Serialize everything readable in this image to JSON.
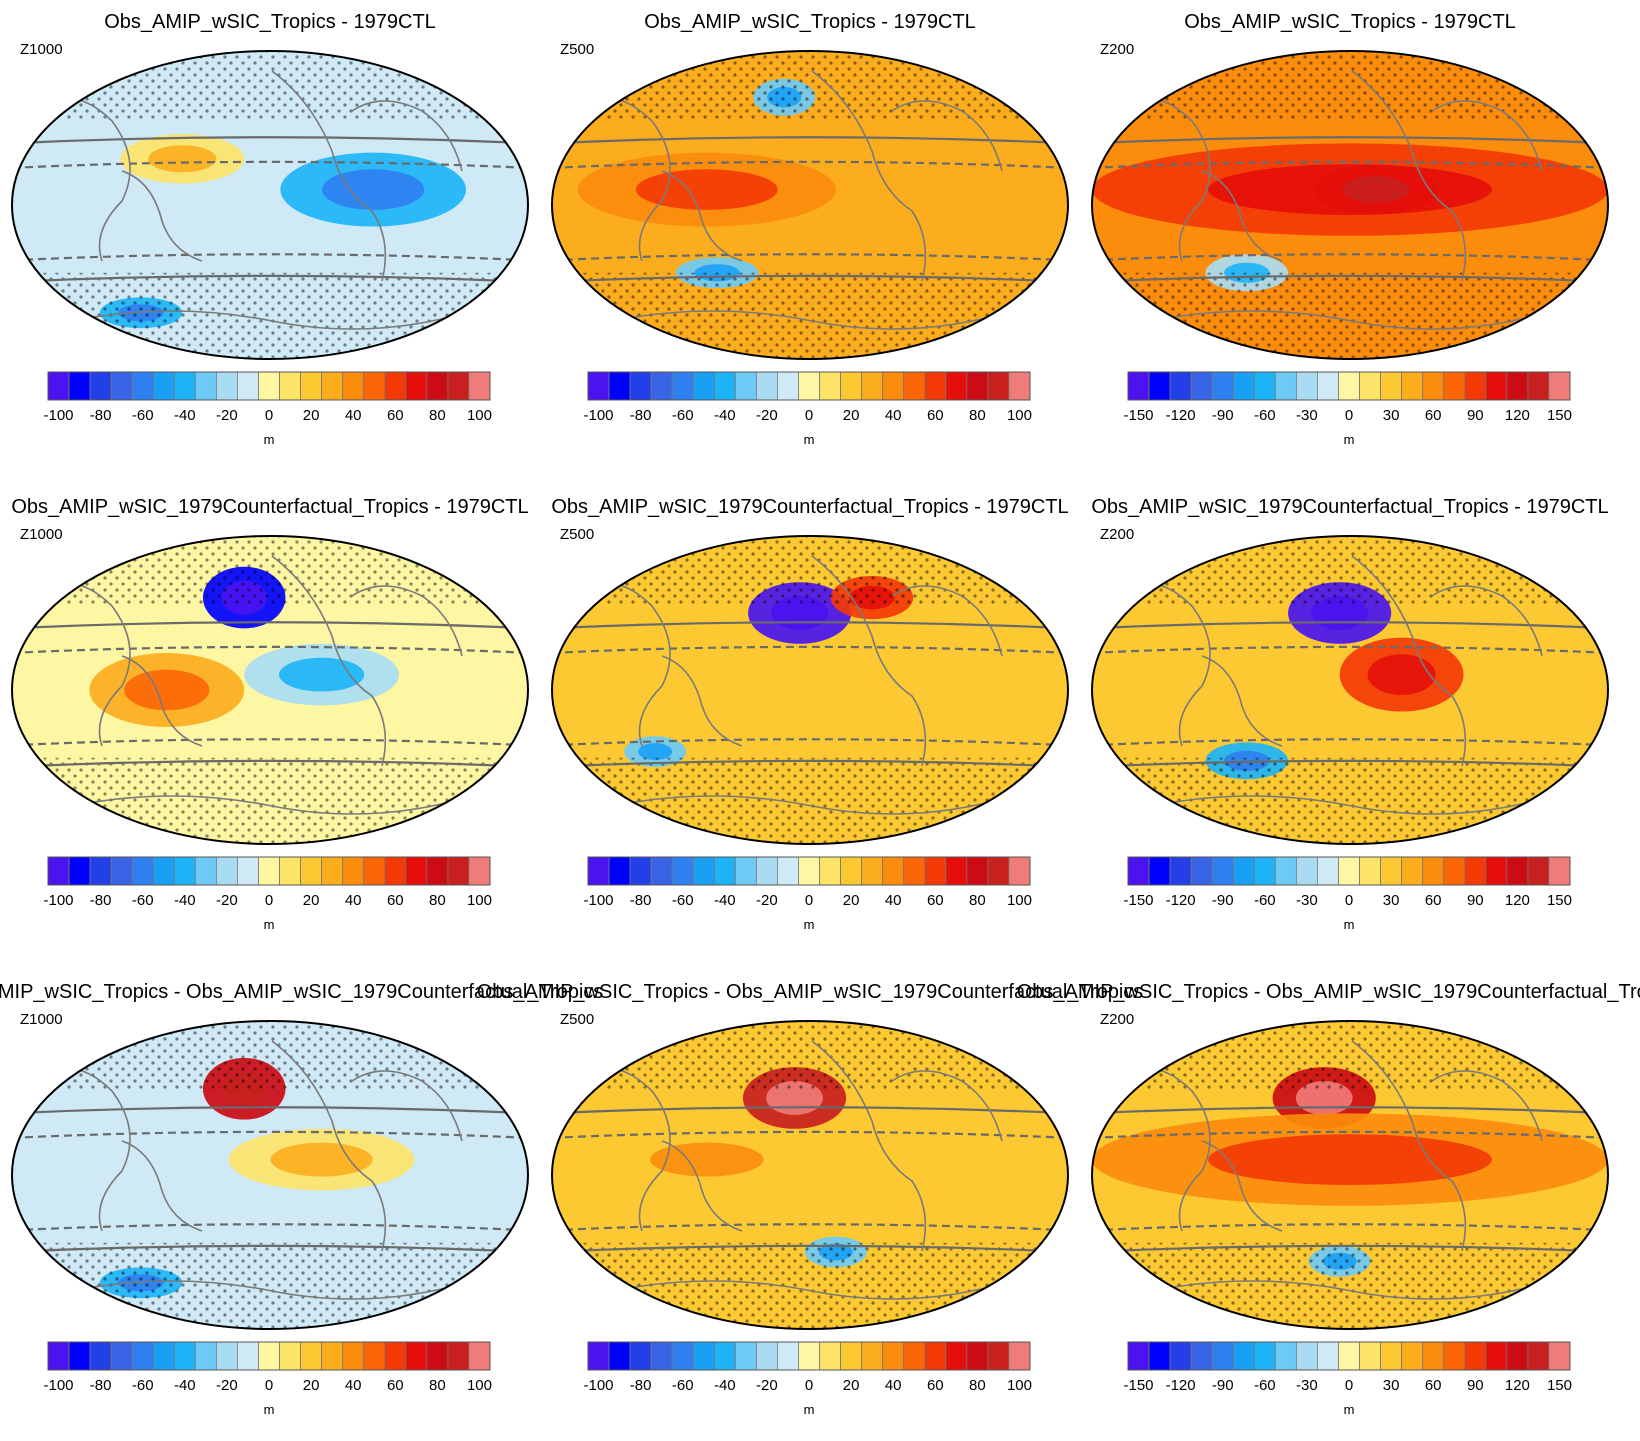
{
  "colors": {
    "scale": [
      "#4a13f0",
      "#0000ff",
      "#2340e8",
      "#3a64e6",
      "#2f80f0",
      "#19a0f5",
      "#1db4f7",
      "#6ecaf5",
      "#a9dcf3",
      "#cfe9f6",
      "#fdf6a3",
      "#fde469",
      "#fcc932",
      "#fcad1e",
      "#fb8c0c",
      "#fb6606",
      "#f33a06",
      "#e50e0a",
      "#cc0b14",
      "#c8201f",
      "#ef7c79"
    ],
    "coast": "#7a7a7a",
    "frame": "#000000"
  },
  "scales": {
    "pm100": {
      "labels": [
        "-100",
        "-80",
        "-60",
        "-40",
        "-20",
        "0",
        "20",
        "40",
        "60",
        "80",
        "100"
      ],
      "unit": "m"
    },
    "pm150": {
      "labels": [
        "-150",
        "-120",
        "-90",
        "-60",
        "-30",
        "0",
        "30",
        "60",
        "90",
        "120",
        "150"
      ],
      "unit": "m"
    }
  },
  "rows": [
    {
      "title": "Obs_AMIP_wSIC_Tropics - 1979CTL"
    },
    {
      "title": "Obs_AMIP_wSIC_1979Counterfactual_Tropics - 1979CTL"
    },
    {
      "title": "Obs_AMIP_wSIC_Tropics - Obs_AMIP_wSIC_1979Counterfactual_Tropics"
    }
  ],
  "panels": [
    {
      "level": "Z1000",
      "scale": "pm100",
      "base": 0.45,
      "blobs": [
        {
          "c": [
            0.33,
            0.35
          ],
          "r": [
            0.12,
            0.08
          ],
          "v": 0.55
        },
        {
          "c": [
            0.7,
            0.45
          ],
          "r": [
            0.18,
            0.12
          ],
          "v": 0.3
        },
        {
          "c": [
            0.25,
            0.85
          ],
          "r": [
            0.08,
            0.05
          ],
          "v": 0.3
        }
      ]
    },
    {
      "level": "Z500",
      "scale": "pm100",
      "base": 0.65,
      "blobs": [
        {
          "c": [
            0.3,
            0.45
          ],
          "r": [
            0.25,
            0.12
          ],
          "v": 0.7
        },
        {
          "c": [
            0.45,
            0.15
          ],
          "r": [
            0.06,
            0.06
          ],
          "v": 0.35
        },
        {
          "c": [
            0.32,
            0.72
          ],
          "r": [
            0.08,
            0.05
          ],
          "v": 0.35
        }
      ]
    },
    {
      "level": "Z200",
      "scale": "pm150",
      "base": 0.7,
      "blobs": [
        {
          "c": [
            0.5,
            0.45
          ],
          "r": [
            0.5,
            0.15
          ],
          "v": 0.78
        },
        {
          "c": [
            0.55,
            0.45
          ],
          "r": [
            0.12,
            0.08
          ],
          "v": 0.86
        },
        {
          "c": [
            0.3,
            0.72
          ],
          "r": [
            0.08,
            0.06
          ],
          "v": 0.38
        }
      ]
    },
    {
      "level": "Z1000",
      "scale": "pm100",
      "base": 0.5,
      "blobs": [
        {
          "c": [
            0.45,
            0.2
          ],
          "r": [
            0.08,
            0.1
          ],
          "v": 0.05
        },
        {
          "c": [
            0.6,
            0.45
          ],
          "r": [
            0.15,
            0.1
          ],
          "v": 0.38
        },
        {
          "c": [
            0.3,
            0.5
          ],
          "r": [
            0.15,
            0.12
          ],
          "v": 0.65
        }
      ]
    },
    {
      "level": "Z500",
      "scale": "pm100",
      "base": 0.6,
      "blobs": [
        {
          "c": [
            0.48,
            0.25
          ],
          "r": [
            0.1,
            0.1
          ],
          "v": 0.02
        },
        {
          "c": [
            0.62,
            0.2
          ],
          "r": [
            0.08,
            0.07
          ],
          "v": 0.78
        },
        {
          "c": [
            0.2,
            0.7
          ],
          "r": [
            0.06,
            0.05
          ],
          "v": 0.35
        }
      ]
    },
    {
      "level": "Z200",
      "scale": "pm150",
      "base": 0.62,
      "blobs": [
        {
          "c": [
            0.48,
            0.25
          ],
          "r": [
            0.1,
            0.1
          ],
          "v": 0.02
        },
        {
          "c": [
            0.6,
            0.45
          ],
          "r": [
            0.12,
            0.12
          ],
          "v": 0.78
        },
        {
          "c": [
            0.3,
            0.73
          ],
          "r": [
            0.08,
            0.06
          ],
          "v": 0.3
        }
      ]
    },
    {
      "level": "Z1000",
      "scale": "pm100",
      "base": 0.45,
      "blobs": [
        {
          "c": [
            0.45,
            0.22
          ],
          "r": [
            0.08,
            0.1
          ],
          "v": 0.88
        },
        {
          "c": [
            0.6,
            0.45
          ],
          "r": [
            0.18,
            0.1
          ],
          "v": 0.55
        },
        {
          "c": [
            0.25,
            0.85
          ],
          "r": [
            0.08,
            0.05
          ],
          "v": 0.3
        }
      ]
    },
    {
      "level": "Z500",
      "scale": "pm100",
      "base": 0.6,
      "blobs": [
        {
          "c": [
            0.47,
            0.25
          ],
          "r": [
            0.1,
            0.1
          ],
          "v": 0.96
        },
        {
          "c": [
            0.55,
            0.75
          ],
          "r": [
            0.06,
            0.05
          ],
          "v": 0.35
        },
        {
          "c": [
            0.3,
            0.45
          ],
          "r": [
            0.2,
            0.1
          ],
          "v": 0.6
        }
      ]
    },
    {
      "level": "Z200",
      "scale": "pm150",
      "base": 0.62,
      "blobs": [
        {
          "c": [
            0.45,
            0.25
          ],
          "r": [
            0.1,
            0.1
          ],
          "v": 0.9
        },
        {
          "c": [
            0.5,
            0.45
          ],
          "r": [
            0.5,
            0.15
          ],
          "v": 0.7
        },
        {
          "c": [
            0.48,
            0.78
          ],
          "r": [
            0.06,
            0.05
          ],
          "v": 0.35
        }
      ]
    }
  ]
}
